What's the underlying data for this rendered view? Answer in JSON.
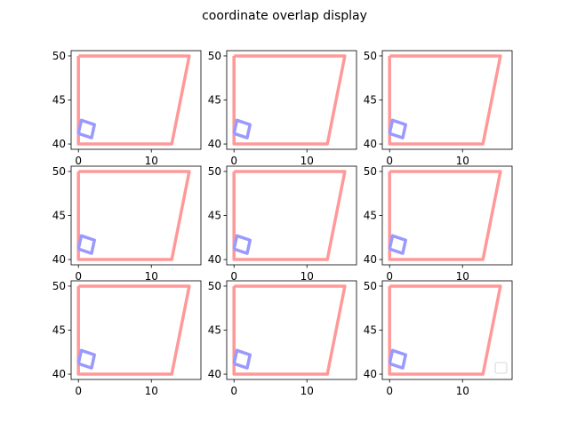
{
  "figure": {
    "title": "coordinate overlap display"
  },
  "chart_data": {
    "type": "line",
    "title": "coordinate overlap display",
    "layout": "3x3 grid",
    "subplots": [
      {
        "id": 1,
        "xlim": [
          -1,
          16.8
        ],
        "ylim": [
          39.4,
          50.6
        ],
        "xticks": [
          0,
          10
        ],
        "yticks": [
          40,
          45,
          50
        ]
      },
      {
        "id": 2,
        "xlim": [
          -1,
          16.8
        ],
        "ylim": [
          39.4,
          50.6
        ],
        "xticks": [
          0,
          10
        ],
        "yticks": [
          40,
          45,
          50
        ]
      },
      {
        "id": 3,
        "xlim": [
          -1,
          16.8
        ],
        "ylim": [
          39.4,
          50.6
        ],
        "xticks": [
          0,
          10
        ],
        "yticks": [
          40,
          45,
          50
        ]
      },
      {
        "id": 4,
        "xlim": [
          -1,
          16.8
        ],
        "ylim": [
          39.4,
          50.6
        ],
        "xticks": [
          0,
          10
        ],
        "yticks": [
          40,
          45,
          50
        ]
      },
      {
        "id": 5,
        "xlim": [
          -1,
          16.8
        ],
        "ylim": [
          39.4,
          50.6
        ],
        "xticks": [
          0,
          10
        ],
        "yticks": [
          40,
          45,
          50
        ]
      },
      {
        "id": 6,
        "xlim": [
          -1,
          16.8
        ],
        "ylim": [
          39.4,
          50.6
        ],
        "xticks": [
          0,
          10
        ],
        "yticks": [
          40,
          45,
          50
        ]
      },
      {
        "id": 7,
        "xlim": [
          -1,
          16.8
        ],
        "ylim": [
          39.4,
          50.6
        ],
        "xticks": [
          0,
          10
        ],
        "yticks": [
          40,
          45,
          50
        ]
      },
      {
        "id": 8,
        "xlim": [
          -1,
          16.8
        ],
        "ylim": [
          39.4,
          50.6
        ],
        "xticks": [
          0,
          10
        ],
        "yticks": [
          40,
          45,
          50
        ]
      },
      {
        "id": 9,
        "xlim": [
          -1,
          16.8
        ],
        "ylim": [
          39.4,
          50.6
        ],
        "xticks": [
          0,
          10
        ],
        "yticks": [
          40,
          45,
          50
        ],
        "legend": "bottom-right (empty)"
      }
    ],
    "series": [
      {
        "color": "#ff9999",
        "x": [
          0,
          15.2,
          12.8,
          0,
          0
        ],
        "y": [
          50,
          50,
          40,
          40,
          50
        ]
      },
      {
        "color": "#9999ff",
        "x": [
          0,
          1.8,
          2.2,
          0.4,
          0
        ],
        "y": [
          41.2,
          40.7,
          42.2,
          42.7,
          41.2
        ]
      }
    ]
  }
}
